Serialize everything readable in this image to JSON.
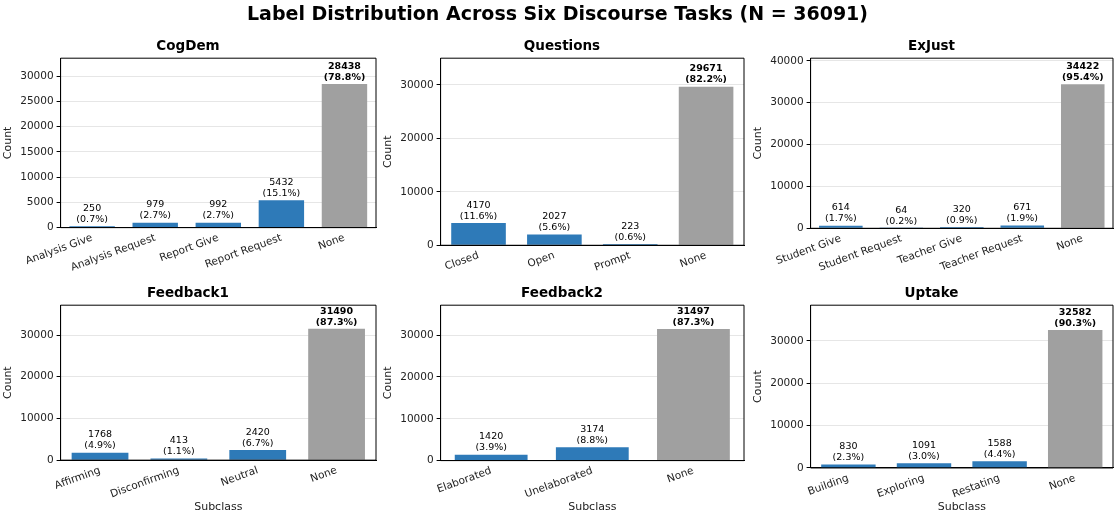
{
  "chart_data": [
    {
      "type": "bar",
      "annotations": [
        "Label Distribution Across Six Discourse Tasks (N = 36091)"
      ],
      "title": "CogDem",
      "ylabel": "Count",
      "categories": [
        "Analysis Give",
        "Analysis Request",
        "Report Give",
        "Report Request",
        "None"
      ],
      "values": [
        250,
        979,
        992,
        5432,
        28438
      ],
      "colors": [
        "#2e7ab8",
        "#2e7ab8",
        "#2e7ab8",
        "#2e7ab8",
        "#a0a0a0"
      ],
      "value_labels": [
        "250\n(0.7%)",
        "979\n(2.7%)",
        "992\n(2.7%)",
        "5432\n(15.1%)",
        "28438\n(78.8%)"
      ],
      "ylim": [
        0,
        33560
      ],
      "yticks": [
        0,
        5000,
        10000,
        15000,
        20000,
        25000,
        30000
      ],
      "grid": "y",
      "legend": false
    },
    {
      "type": "bar",
      "title": "Questions",
      "ylabel": "Count",
      "categories": [
        "Closed",
        "Open",
        "Prompt",
        "None"
      ],
      "values": [
        4170,
        2027,
        223,
        29671
      ],
      "colors": [
        "#2e7ab8",
        "#2e7ab8",
        "#2e7ab8",
        "#a0a0a0"
      ],
      "value_labels": [
        "4170\n(11.6%)",
        "2027\n(5.6%)",
        "223\n(0.6%)",
        "29671\n(82.2%)"
      ],
      "ylim": [
        0,
        35010
      ],
      "yticks": [
        0,
        10000,
        20000,
        30000
      ],
      "grid": "y",
      "legend": false
    },
    {
      "type": "bar",
      "title": "ExJust",
      "ylabel": "Count",
      "categories": [
        "Student Give",
        "Student Request",
        "Teacher Give",
        "Teacher Request",
        "None"
      ],
      "values": [
        614,
        64,
        320,
        671,
        34422
      ],
      "colors": [
        "#2e7ab8",
        "#2e7ab8",
        "#2e7ab8",
        "#2e7ab8",
        "#a0a0a0"
      ],
      "value_labels": [
        "614\n(1.7%)",
        "64\n(0.2%)",
        "320\n(0.9%)",
        "671\n(1.9%)",
        "34422\n(95.4%)"
      ],
      "ylim": [
        0,
        40620
      ],
      "yticks": [
        0,
        10000,
        20000,
        30000,
        40000
      ],
      "grid": "y",
      "legend": false
    },
    {
      "type": "bar",
      "title": "Feedback1",
      "xlabel": "Subclass",
      "ylabel": "Count",
      "categories": [
        "Affirming",
        "Disconfirming",
        "Neutral",
        "None"
      ],
      "values": [
        1768,
        413,
        2420,
        31490
      ],
      "colors": [
        "#2e7ab8",
        "#2e7ab8",
        "#2e7ab8",
        "#a0a0a0"
      ],
      "value_labels": [
        "1768\n(4.9%)",
        "413\n(1.1%)",
        "2420\n(6.7%)",
        "31490\n(87.3%)"
      ],
      "ylim": [
        0,
        37160
      ],
      "yticks": [
        0,
        10000,
        20000,
        30000
      ],
      "grid": "y",
      "legend": false
    },
    {
      "type": "bar",
      "title": "Feedback2",
      "xlabel": "Subclass",
      "ylabel": "Count",
      "categories": [
        "Elaborated",
        "Unelaborated",
        "None"
      ],
      "values": [
        1420,
        3174,
        31497
      ],
      "colors": [
        "#2e7ab8",
        "#2e7ab8",
        "#a0a0a0"
      ],
      "value_labels": [
        "1420\n(3.9%)",
        "3174\n(8.8%)",
        "31497\n(87.3%)"
      ],
      "ylim": [
        0,
        37170
      ],
      "yticks": [
        0,
        10000,
        20000,
        30000
      ],
      "grid": "y",
      "legend": false
    },
    {
      "type": "bar",
      "title": "Uptake",
      "xlabel": "Subclass",
      "ylabel": "Count",
      "categories": [
        "Building",
        "Exploring",
        "Restating",
        "None"
      ],
      "values": [
        830,
        1091,
        1588,
        32582
      ],
      "colors": [
        "#2e7ab8",
        "#2e7ab8",
        "#2e7ab8",
        "#a0a0a0"
      ],
      "value_labels": [
        "830\n(2.3%)",
        "1091\n(3.0%)",
        "1588\n(4.4%)",
        "32582\n(90.3%)"
      ],
      "ylim": [
        0,
        38450
      ],
      "yticks": [
        0,
        10000,
        20000,
        30000
      ],
      "grid": "y",
      "legend": false
    }
  ]
}
